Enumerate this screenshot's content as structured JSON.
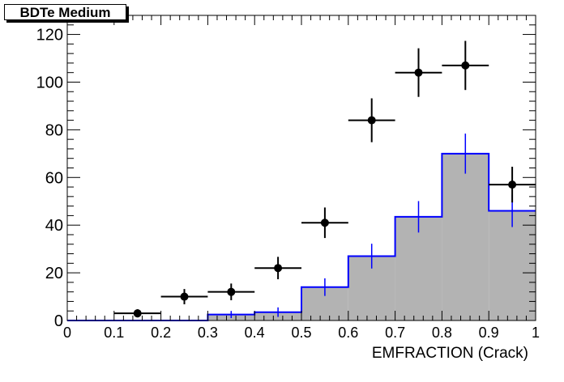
{
  "chart_data": {
    "type": "bar",
    "title": "BDTe Medium",
    "xlabel": "EMFRACTION (Crack)",
    "ylabel": "",
    "xlim": [
      0,
      1
    ],
    "ylim": [
      0,
      128
    ],
    "x_ticks": [
      "0",
      "0.1",
      "0.2",
      "0.3",
      "0.4",
      "0.5",
      "0.6",
      "0.7",
      "0.8",
      "0.9",
      "1"
    ],
    "y_ticks": [
      "0",
      "20",
      "40",
      "60",
      "80",
      "100",
      "120"
    ],
    "bin_edges": [
      0,
      0.1,
      0.2,
      0.3,
      0.4,
      0.5,
      0.6,
      0.7,
      0.8,
      0.9,
      1.0
    ],
    "series": [
      {
        "style": "filled-histogram",
        "fill_color": "#b3b3b3",
        "line_color": "#0000ff",
        "values": [
          0,
          0,
          0,
          2.5,
          3.5,
          14,
          27,
          43.5,
          70,
          46
        ],
        "errors": [
          0,
          0,
          0,
          1.5,
          2,
          3.7,
          5.2,
          6.6,
          8.4,
          6.8
        ]
      },
      {
        "style": "points-with-errors",
        "color": "#000000",
        "x": [
          0.15,
          0.25,
          0.35,
          0.45,
          0.55,
          0.65,
          0.75,
          0.85,
          0.95
        ],
        "values": [
          3,
          10,
          12,
          22,
          41,
          84,
          104,
          107,
          57
        ],
        "errors": [
          1.7,
          3.2,
          3.5,
          4.7,
          6.4,
          9.2,
          10.2,
          10.3,
          7.5
        ]
      }
    ]
  }
}
